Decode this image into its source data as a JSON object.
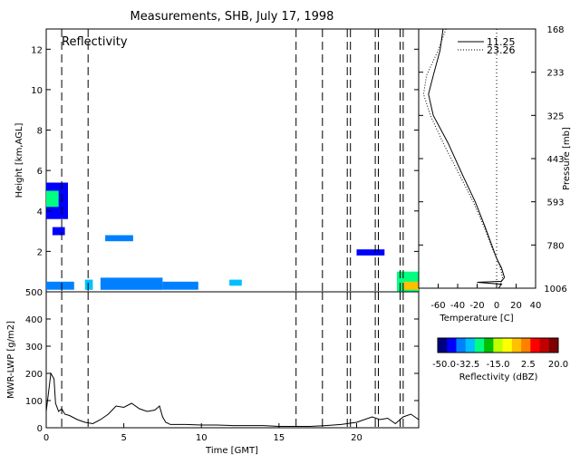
{
  "title": "Measurements, SHB, July 17, 1998",
  "chart_data": [
    {
      "type": "heatmap",
      "label": "Reflectivity",
      "xlabel": "",
      "ylabel": "Height [km,AGL]",
      "xlim": [
        0,
        24
      ],
      "ylim": [
        0,
        13
      ],
      "x_ticks": [
        "0",
        "5",
        "10",
        "15",
        "20"
      ],
      "y_ticks": [
        "2",
        "4",
        "6",
        "8",
        "10",
        "12"
      ],
      "dashed_lines_x": [
        1.0,
        2.7,
        16.1,
        17.8,
        19.4,
        19.6,
        21.2,
        21.4,
        22.8,
        23.0
      ],
      "echoes": [
        {
          "x0": 0.0,
          "x1": 1.4,
          "y0": 3.6,
          "y1": 5.4,
          "dbz": -40
        },
        {
          "x0": 0.0,
          "x1": 0.8,
          "y0": 4.2,
          "y1": 5.0,
          "dbz": -25
        },
        {
          "x0": 0.4,
          "x1": 1.2,
          "y0": 2.8,
          "y1": 3.2,
          "dbz": -42
        },
        {
          "x0": 0.0,
          "x1": 1.8,
          "y0": 0.1,
          "y1": 0.5,
          "dbz": -35
        },
        {
          "x0": 2.5,
          "x1": 3.0,
          "y0": 0.1,
          "y1": 0.6,
          "dbz": -30
        },
        {
          "x0": 3.5,
          "x1": 7.5,
          "y0": 0.1,
          "y1": 0.7,
          "dbz": -35
        },
        {
          "x0": 3.8,
          "x1": 5.6,
          "y0": 2.5,
          "y1": 2.8,
          "dbz": -38
        },
        {
          "x0": 7.5,
          "x1": 9.8,
          "y0": 0.1,
          "y1": 0.5,
          "dbz": -38
        },
        {
          "x0": 11.8,
          "x1": 12.6,
          "y0": 0.3,
          "y1": 0.6,
          "dbz": -32
        },
        {
          "x0": 20.0,
          "x1": 21.8,
          "y0": 1.8,
          "y1": 2.1,
          "dbz": -40
        },
        {
          "x0": 22.6,
          "x1": 24.0,
          "y0": 0.0,
          "y1": 1.0,
          "dbz": -25
        },
        {
          "x0": 23.0,
          "x1": 24.0,
          "y0": 0.1,
          "y1": 0.5,
          "dbz": -5
        }
      ]
    },
    {
      "type": "line",
      "xlabel": "Time [GMT]",
      "ylabel": "MWR-LWP [g/m2]",
      "xlim": [
        0,
        24
      ],
      "ylim": [
        0,
        500
      ],
      "x_ticks": [
        "0",
        "5",
        "10",
        "15",
        "20"
      ],
      "y_ticks": [
        "0",
        "100",
        "200",
        "300",
        "400",
        "500"
      ],
      "x": [
        0.0,
        0.3,
        0.5,
        0.6,
        0.8,
        1.0,
        1.2,
        1.5,
        2.0,
        2.5,
        3.0,
        3.5,
        4.0,
        4.5,
        5.0,
        5.5,
        6.0,
        6.5,
        7.0,
        7.3,
        7.5,
        7.7,
        8.0,
        9.0,
        10.0,
        11.0,
        12.0,
        13.0,
        14.0,
        15.0,
        16.0,
        17.0,
        18.0,
        19.0,
        20.0,
        21.0,
        21.5,
        22.0,
        22.5,
        23.0,
        23.5,
        24.0
      ],
      "y": [
        60,
        200,
        180,
        90,
        60,
        70,
        50,
        45,
        30,
        20,
        15,
        30,
        50,
        80,
        75,
        90,
        70,
        60,
        65,
        80,
        40,
        20,
        12,
        12,
        10,
        10,
        8,
        8,
        8,
        5,
        5,
        5,
        8,
        12,
        20,
        40,
        30,
        35,
        15,
        40,
        50,
        30
      ]
    },
    {
      "type": "line",
      "xlabel": "Temperature [C]",
      "ylabel": "Pressure [mb]",
      "xlim": [
        -80,
        40
      ],
      "ylim": [
        1006,
        168
      ],
      "x_ticks": [
        "-60",
        "-40",
        "-20",
        "0",
        "20",
        "40"
      ],
      "y_ticks": [
        "168",
        "233",
        "325",
        "443",
        "593",
        "780",
        "1006"
      ],
      "series": [
        {
          "name": "11.25",
          "line_style": "solid",
          "x": [
            -55,
            -58,
            -65,
            -70,
            -65,
            -50,
            -35,
            -22,
            -12,
            -5,
            0,
            5,
            8,
            5,
            -20,
            5,
            2
          ],
          "y": [
            168,
            200,
            240,
            280,
            325,
            400,
            500,
            593,
            700,
            780,
            850,
            900,
            950,
            970,
            975,
            985,
            1006
          ]
        },
        {
          "name": "23.26",
          "line_style": "dotted",
          "x": [
            -52,
            -60,
            -72,
            -75,
            -68,
            -55,
            -38,
            -24,
            -13,
            -6,
            0,
            4,
            6,
            3
          ],
          "y": [
            168,
            200,
            240,
            280,
            325,
            400,
            500,
            593,
            700,
            780,
            850,
            900,
            950,
            1006
          ]
        }
      ]
    },
    {
      "type": "colorbar",
      "xlabel": "Reflectivity (dBZ)",
      "range": [
        -50,
        20
      ],
      "ticks": [
        "-50.0",
        "-32.5",
        "-15.0",
        "2.5",
        "20.0"
      ],
      "colors": [
        "#000080",
        "#0000ff",
        "#0080ff",
        "#00c0ff",
        "#00ff80",
        "#00c000",
        "#c0ff00",
        "#ffff00",
        "#ffc000",
        "#ff8000",
        "#ff0000",
        "#c00000",
        "#800000"
      ]
    }
  ]
}
